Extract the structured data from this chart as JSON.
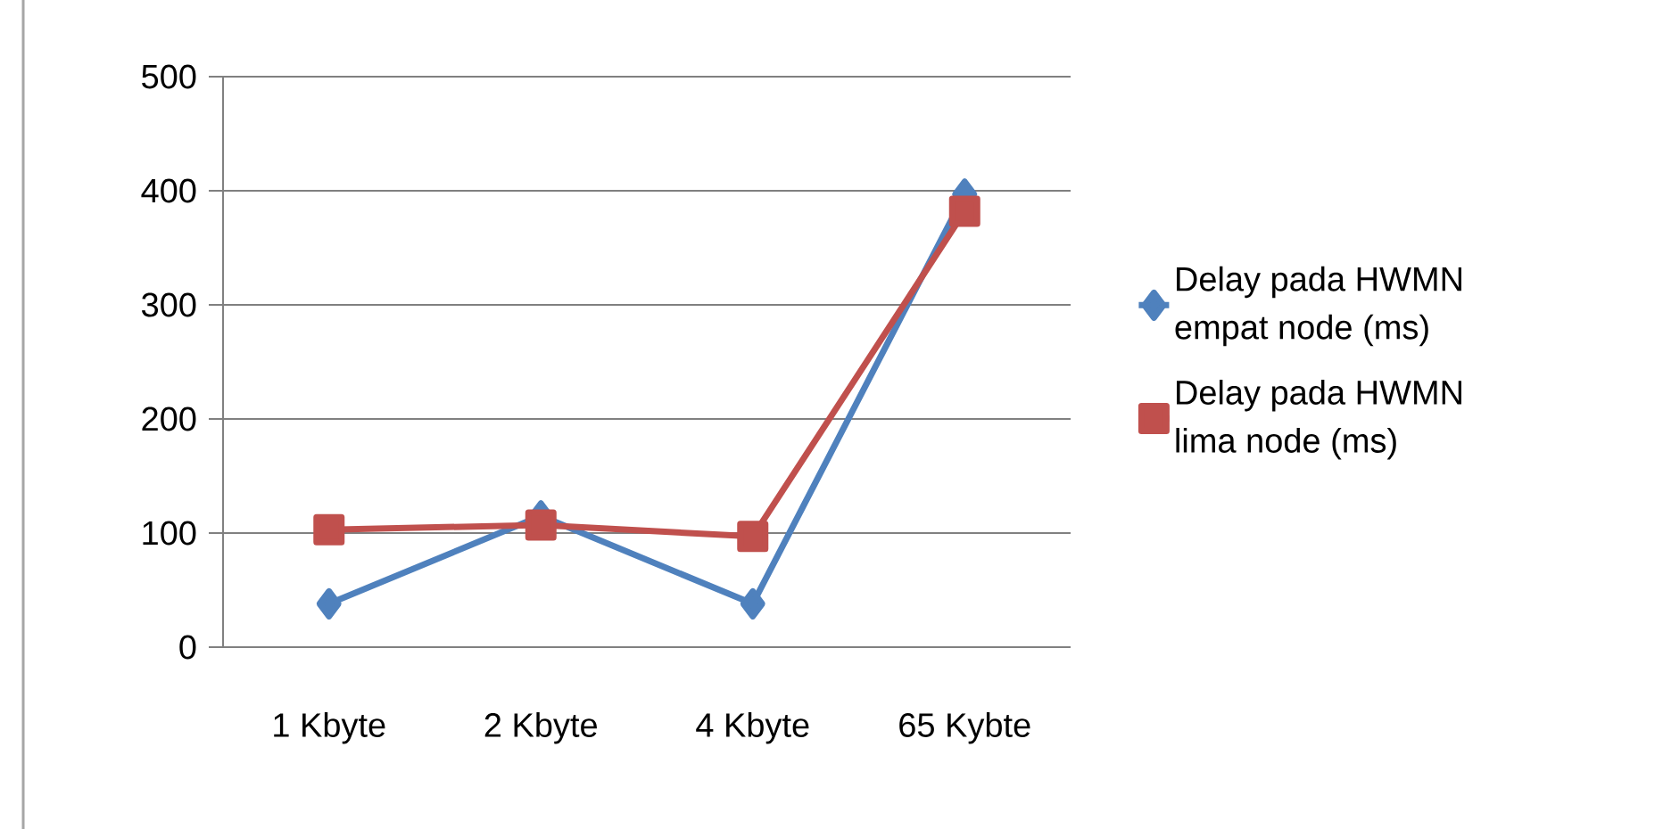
{
  "chart_data": {
    "type": "line",
    "categories": [
      "1 Kbyte",
      "2 Kbyte",
      "4 Kbyte",
      "65 Kybte"
    ],
    "series": [
      {
        "name": "Delay pada HWMN empat node (ms)",
        "color": "#4f81bd",
        "marker": "diamond",
        "values": [
          38,
          115,
          38,
          397
        ]
      },
      {
        "name": "Delay pada HWMN lima node (ms)",
        "color": "#c0504d",
        "marker": "square",
        "values": [
          103,
          107,
          97,
          382
        ]
      }
    ],
    "ylim": [
      0,
      500
    ],
    "yticks": [
      0,
      100,
      200,
      300,
      400,
      500
    ],
    "grid": "y",
    "legend": "right",
    "line_style": "solid"
  }
}
